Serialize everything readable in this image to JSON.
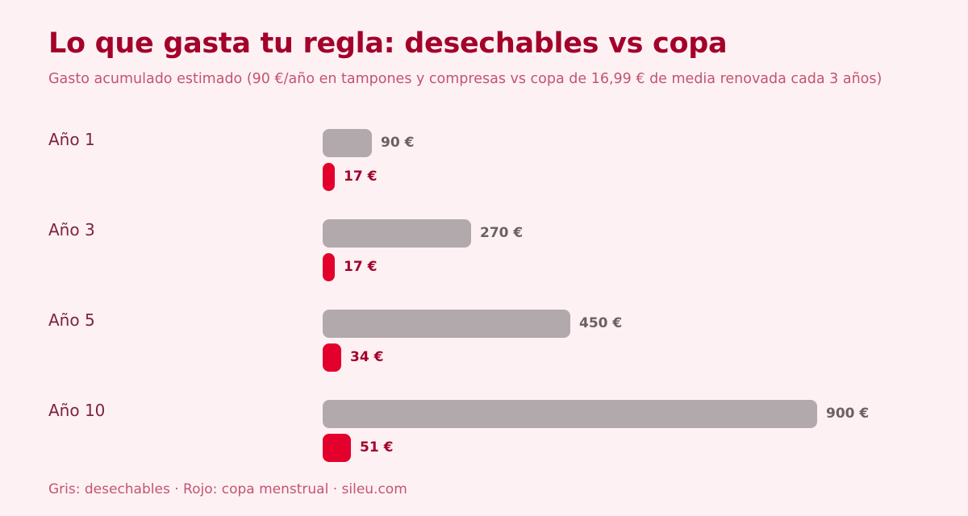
{
  "header": {
    "title": "Lo que gasta tu regla: desechables vs copa",
    "subtitle": "Gasto acumulado estimado (90 €/año en tampones y compresas vs copa de 16,99 € de media renovada cada 3 años)"
  },
  "footer": {
    "note": "Gris: desechables · Rojo: copa menstrual · sileu.com"
  },
  "colors": {
    "background": "#fdf1f4",
    "title": "#a3002a",
    "disposable_bar": "#b2a9ac",
    "cup_bar": "#e3002c"
  },
  "chart_data": {
    "type": "bar",
    "orientation": "horizontal",
    "title": "Lo que gasta tu regla: desechables vs copa",
    "subtitle": "Gasto acumulado estimado (90 €/año en tampones y compresas vs copa de 16,99 € de media renovada cada 3 años)",
    "categories": [
      "Año 1",
      "Año 3",
      "Año 5",
      "Año 10"
    ],
    "series": [
      {
        "name": "desechables",
        "values": [
          90,
          270,
          450,
          900
        ],
        "labels": [
          "90 €",
          "270 €",
          "450 €",
          "900 €"
        ]
      },
      {
        "name": "copa menstrual",
        "values": [
          17,
          17,
          34,
          51
        ],
        "labels": [
          "17 €",
          "17 €",
          "34 €",
          "51 €"
        ]
      }
    ],
    "xlim": [
      0,
      900
    ],
    "grid": false,
    "legend": "bottom-left"
  }
}
